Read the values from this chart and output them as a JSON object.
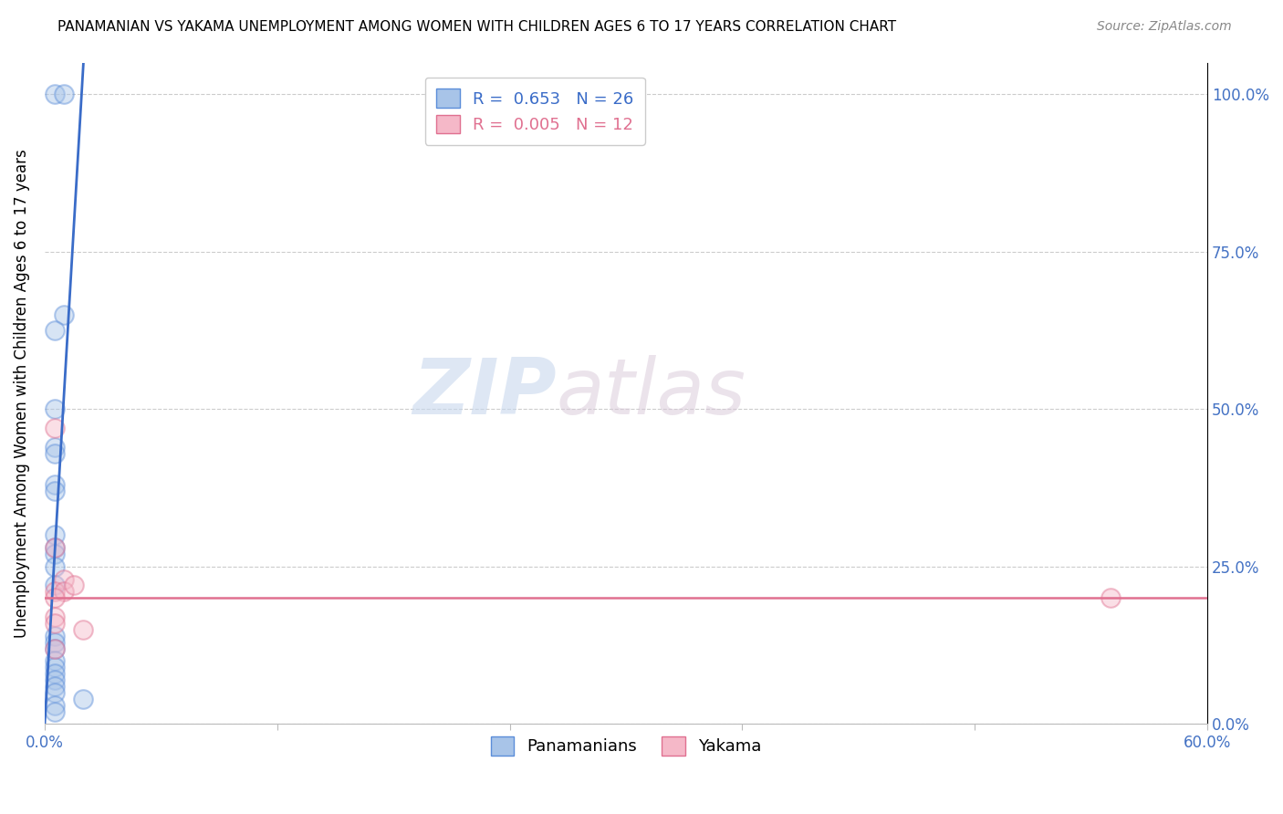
{
  "title": "PANAMANIAN VS YAKAMA UNEMPLOYMENT AMONG WOMEN WITH CHILDREN AGES 6 TO 17 YEARS CORRELATION CHART",
  "source": "Source: ZipAtlas.com",
  "ylabel_label": "Unemployment Among Women with Children Ages 6 to 17 years",
  "blue_R": "0.653",
  "blue_N": "26",
  "pink_R": "0.005",
  "pink_N": "12",
  "blue_scatter_x": [
    0.005,
    0.01,
    0.01,
    0.005,
    0.005,
    0.005,
    0.005,
    0.005,
    0.005,
    0.005,
    0.005,
    0.005,
    0.005,
    0.005,
    0.005,
    0.005,
    0.005,
    0.005,
    0.005,
    0.005,
    0.005,
    0.005,
    0.005,
    0.005,
    0.005,
    0.02
  ],
  "blue_scatter_y": [
    1.0,
    1.0,
    0.65,
    0.625,
    0.5,
    0.44,
    0.43,
    0.38,
    0.37,
    0.3,
    0.28,
    0.27,
    0.25,
    0.22,
    0.14,
    0.13,
    0.12,
    0.1,
    0.09,
    0.08,
    0.07,
    0.06,
    0.05,
    0.03,
    0.02,
    0.04
  ],
  "pink_scatter_x": [
    0.005,
    0.005,
    0.01,
    0.005,
    0.01,
    0.005,
    0.015,
    0.005,
    0.005,
    0.02,
    0.55,
    0.005
  ],
  "pink_scatter_y": [
    0.47,
    0.28,
    0.23,
    0.21,
    0.21,
    0.2,
    0.22,
    0.17,
    0.16,
    0.15,
    0.2,
    0.12
  ],
  "blue_line_x": [
    0.0,
    0.02
  ],
  "blue_line_y": [
    0.0,
    1.05
  ],
  "pink_line_x": [
    0.0,
    0.6
  ],
  "pink_line_y": [
    0.2,
    0.2
  ],
  "xlim": [
    0.0,
    0.6
  ],
  "ylim": [
    0.0,
    1.05
  ],
  "y_tick_vals": [
    0.0,
    0.25,
    0.5,
    0.75,
    1.0
  ],
  "y_tick_labels": [
    "0.0%",
    "25.0%",
    "50.0%",
    "75.0%",
    "100.0%"
  ],
  "x_tick_vals": [
    0.0,
    0.12,
    0.24,
    0.36,
    0.48,
    0.6
  ],
  "x_tick_labels": [
    "0.0%",
    "",
    "",
    "",
    "",
    "60.0%"
  ],
  "watermark_zip": "ZIP",
  "watermark_atlas": "atlas",
  "scatter_size": 220,
  "scatter_alpha": 0.45,
  "scatter_linewidth": 1.5,
  "blue_face": "#a8c4e8",
  "blue_edge": "#5b8dd9",
  "pink_face": "#f5b8c8",
  "pink_edge": "#e07090",
  "blue_line_color": "#3a6cc8",
  "pink_line_color": "#e07090",
  "grid_color": "#cccccc",
  "tick_color": "#4472c4",
  "title_fontsize": 11,
  "source_fontsize": 10,
  "tick_fontsize": 12,
  "ylabel_fontsize": 12
}
